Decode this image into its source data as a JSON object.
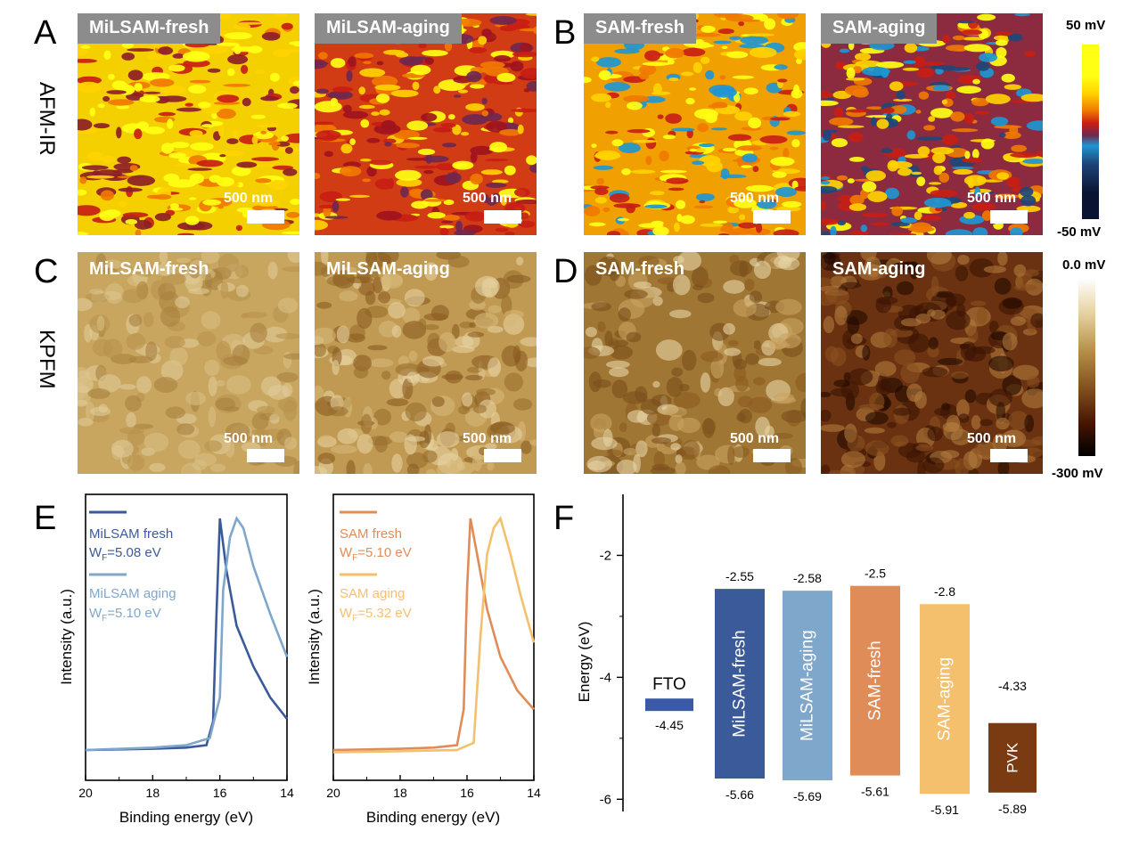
{
  "panels": {
    "A": "A",
    "B": "B",
    "C": "C",
    "D": "D",
    "E": "E",
    "F": "F"
  },
  "row_labels": {
    "afm": "AFM-IR",
    "kpfm": "KPFM"
  },
  "afm_images": [
    {
      "label": "MiLSAM-fresh",
      "scale": "500 nm"
    },
    {
      "label": "MiLSAM-aging",
      "scale": "500 nm"
    },
    {
      "label": "SAM-fresh",
      "scale": "500 nm"
    },
    {
      "label": "SAM-aging",
      "scale": "500 nm"
    }
  ],
  "kpfm_images": [
    {
      "label": "MiLSAM-fresh",
      "scale": "500 nm"
    },
    {
      "label": "MiLSAM-aging",
      "scale": "500 nm"
    },
    {
      "label": "SAM-fresh",
      "scale": "500 nm"
    },
    {
      "label": "SAM-aging",
      "scale": "500 nm"
    }
  ],
  "afm_colorbar": {
    "top": "50 mV",
    "bottom": "-50 mV"
  },
  "kpfm_colorbar": {
    "top": "0.0 mV",
    "bottom": "-300 mV"
  },
  "colors": {
    "afm_scale": [
      "#ffff14",
      "#ffd200",
      "#f07800",
      "#c81e14",
      "#6e2850",
      "#1e96d2",
      "#1e4678",
      "#0a1432"
    ],
    "kpfm_scale": [
      "#ffffff",
      "#e6d2a0",
      "#b48c46",
      "#82501e",
      "#461400",
      "#000000"
    ],
    "milsam_fresh": "#3a5a9a",
    "milsam_aging": "#7fa7cc",
    "sam_fresh": "#e08c58",
    "sam_aging": "#f5c06e",
    "fto": "#3a5aa5",
    "pvk": "#7a3a12"
  },
  "chart_data": [
    {
      "type": "line",
      "xlabel": "Binding energy (eV)",
      "ylabel": "Intensity (a.u.)",
      "xlim": [
        20,
        14
      ],
      "x_ticks": [
        "20",
        "18",
        "16",
        "14"
      ],
      "series": [
        {
          "name": "MiLSAM fresh",
          "wf_label": "W",
          "wf_sub": "F",
          "wf_value": "=5.08 eV",
          "color": "#3a5a9a",
          "x": [
            20,
            18,
            17,
            16.4,
            16.2,
            16.1,
            16.0,
            15.8,
            15.5,
            15.0,
            14.5,
            14.0
          ],
          "y": [
            0.03,
            0.035,
            0.04,
            0.05,
            0.15,
            0.6,
            1.0,
            0.78,
            0.55,
            0.38,
            0.25,
            0.16
          ]
        },
        {
          "name": "MiLSAM aging",
          "wf_label": "W",
          "wf_sub": "F",
          "wf_value": "=5.10 eV",
          "color": "#7fa7cc",
          "x": [
            20,
            18,
            17,
            16.3,
            16.0,
            15.9,
            15.7,
            15.5,
            15.3,
            15.0,
            14.5,
            14.0
          ],
          "y": [
            0.03,
            0.04,
            0.05,
            0.08,
            0.25,
            0.7,
            0.92,
            1.0,
            0.96,
            0.8,
            0.6,
            0.42
          ]
        }
      ]
    },
    {
      "type": "line",
      "xlabel": "Binding energy (eV)",
      "ylabel": "Intensity (a.u.)",
      "xlim": [
        20,
        14
      ],
      "x_ticks": [
        "20",
        "18",
        "16",
        "14"
      ],
      "series": [
        {
          "name": "SAM fresh",
          "wf_label": "W",
          "wf_sub": "F",
          "wf_value": "=5.10 eV",
          "color": "#e08c58",
          "x": [
            20,
            18,
            17,
            16.3,
            16.1,
            16.0,
            15.9,
            15.7,
            15.4,
            15.0,
            14.5,
            14.0
          ],
          "y": [
            0.03,
            0.035,
            0.04,
            0.05,
            0.2,
            0.7,
            1.0,
            0.85,
            0.62,
            0.42,
            0.28,
            0.2
          ]
        },
        {
          "name": "SAM aging",
          "wf_label": "W",
          "wf_sub": "F",
          "wf_value": "=5.32 eV",
          "color": "#f5c06e",
          "x": [
            20,
            18,
            16.3,
            15.8,
            15.6,
            15.4,
            15.2,
            15.0,
            14.7,
            14.4,
            14.0
          ],
          "y": [
            0.02,
            0.025,
            0.03,
            0.06,
            0.5,
            0.85,
            0.96,
            1.0,
            0.85,
            0.68,
            0.48
          ]
        }
      ]
    },
    {
      "type": "bar",
      "ylabel": "Energy (eV)",
      "ylim": [
        -6.2,
        -1.0
      ],
      "y_ticks": [
        -2,
        -4,
        -6
      ],
      "bars": [
        {
          "name": "FTO",
          "top": -4.45,
          "bottom": null,
          "top_label": "FTO",
          "bottom_label": "-4.45",
          "color": "#3a5aa5"
        },
        {
          "name": "MiLSAM-fresh",
          "top": -2.55,
          "bottom": -5.66,
          "top_label": "-2.55",
          "bottom_label": "-5.66",
          "color": "#3a5a9a"
        },
        {
          "name": "MiLSAM-aging",
          "top": -2.58,
          "bottom": -5.69,
          "top_label": "-2.58",
          "bottom_label": "-5.69",
          "color": "#7fa7cc"
        },
        {
          "name": "SAM-fresh",
          "top": -2.5,
          "bottom": -5.61,
          "top_label": "-2.5",
          "bottom_label": "-5.61",
          "color": "#e08c58"
        },
        {
          "name": "SAM-aging",
          "top": -2.8,
          "bottom": -5.91,
          "top_label": "-2.8",
          "bottom_label": "-5.91",
          "color": "#f5c06e"
        },
        {
          "name": "PVK",
          "top": -4.33,
          "bottom": -5.89,
          "top_label": "-4.33",
          "bottom_label": "-5.89",
          "color": "#7a3a12"
        }
      ]
    }
  ]
}
